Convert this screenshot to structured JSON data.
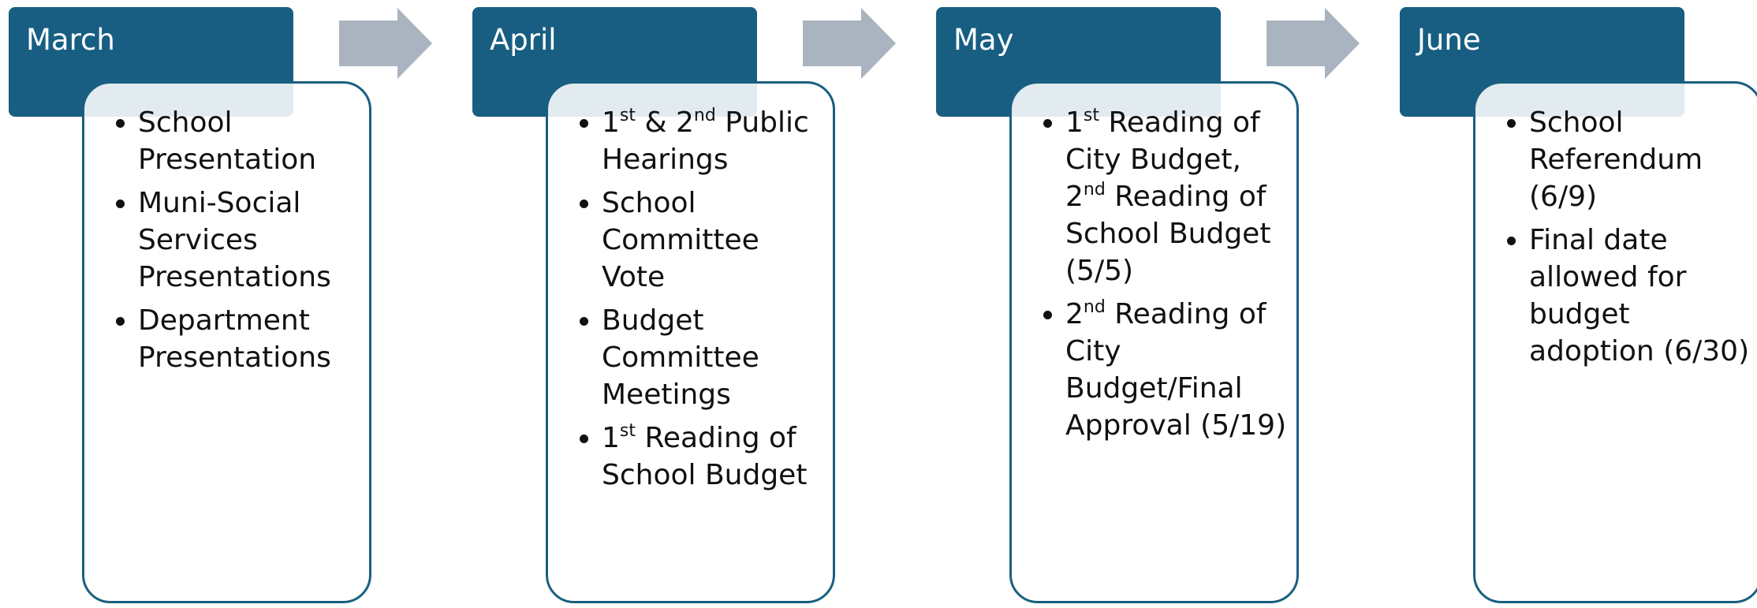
{
  "stages": [
    {
      "label": "March",
      "items": [
        "School Presentation",
        "Muni-Social Services Presentations",
        "Department Presentations"
      ]
    },
    {
      "label": "April",
      "items": [
        "1st & 2nd Public Hearings",
        "School Committee Vote",
        "Budget Committee Meetings",
        "1st Reading of School Budget"
      ]
    },
    {
      "label": "May",
      "items": [
        "1st Reading of City Budget, 2nd Reading of School Budget (5/5)",
        "2nd Reading of City Budget/Final Approval (5/19)"
      ]
    },
    {
      "label": "June",
      "items": [
        "School Referendum (6/9)",
        "Final date allowed for budget adoption (6/30)"
      ]
    }
  ]
}
